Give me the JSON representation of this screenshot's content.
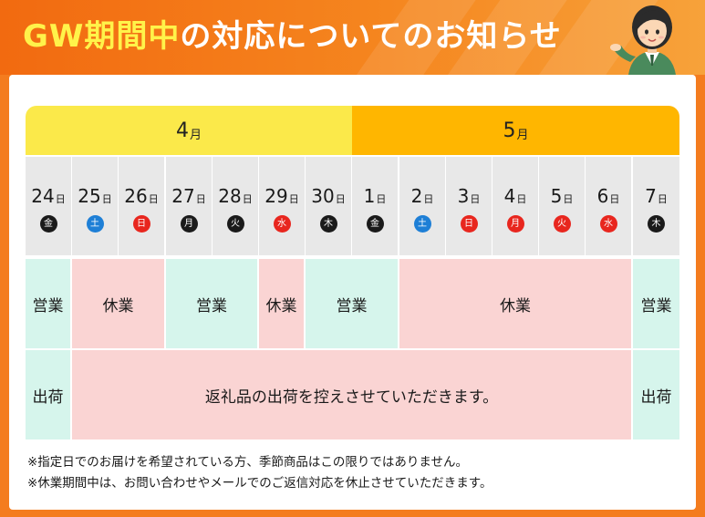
{
  "header": {
    "title_highlight": "GW期間中",
    "title_rest": "の対応についてのお知らせ"
  },
  "colors": {
    "header_orange": "#f47c1e",
    "april_yellow": "#fbe94a",
    "may_orange": "#ffb600",
    "open_green": "#d6f5ec",
    "closed_pink": "#fad4d3",
    "weekday_black": "#1a1a1a",
    "saturday_blue": "#1e7fd6",
    "sunday_holiday_red": "#e8261e"
  },
  "months": [
    {
      "label": "4",
      "unit": "月"
    },
    {
      "label": "5",
      "unit": "月"
    }
  ],
  "days": [
    {
      "num": "24",
      "unit": "日",
      "dow": "金",
      "type": "weekday"
    },
    {
      "num": "25",
      "unit": "日",
      "dow": "土",
      "type": "saturday"
    },
    {
      "num": "26",
      "unit": "日",
      "dow": "日",
      "type": "holiday"
    },
    {
      "num": "27",
      "unit": "日",
      "dow": "月",
      "type": "weekday"
    },
    {
      "num": "28",
      "unit": "日",
      "dow": "火",
      "type": "weekday"
    },
    {
      "num": "29",
      "unit": "日",
      "dow": "水",
      "type": "holiday"
    },
    {
      "num": "30",
      "unit": "日",
      "dow": "木",
      "type": "weekday"
    },
    {
      "num": "1",
      "unit": "日",
      "dow": "金",
      "type": "weekday"
    },
    {
      "num": "2",
      "unit": "日",
      "dow": "土",
      "type": "saturday"
    },
    {
      "num": "3",
      "unit": "日",
      "dow": "日",
      "type": "holiday"
    },
    {
      "num": "4",
      "unit": "日",
      "dow": "月",
      "type": "holiday"
    },
    {
      "num": "5",
      "unit": "日",
      "dow": "火",
      "type": "holiday"
    },
    {
      "num": "6",
      "unit": "日",
      "dow": "水",
      "type": "holiday"
    },
    {
      "num": "7",
      "unit": "日",
      "dow": "木",
      "type": "weekday"
    }
  ],
  "business_row": [
    {
      "label": "営業",
      "status": "open"
    },
    {
      "label": "休業",
      "status": "closed"
    },
    {
      "label": "営業",
      "status": "open"
    },
    {
      "label": "休業",
      "status": "closed"
    },
    {
      "label": "営業",
      "status": "open"
    },
    {
      "label": "休業",
      "status": "closed"
    },
    {
      "label": "営業",
      "status": "open"
    }
  ],
  "shipping_row": [
    {
      "label": "出荷",
      "status": "open"
    },
    {
      "label": "返礼品の出荷を控えさせていただきます。",
      "status": "closed"
    },
    {
      "label": "出荷",
      "status": "open"
    }
  ],
  "notes": [
    "※指定日でのお届けを希望されている方、季節商品はこの限りではありません。",
    "※休業期間中は、お問い合わせやメールでのご返信対応を休止させていただきます。"
  ]
}
